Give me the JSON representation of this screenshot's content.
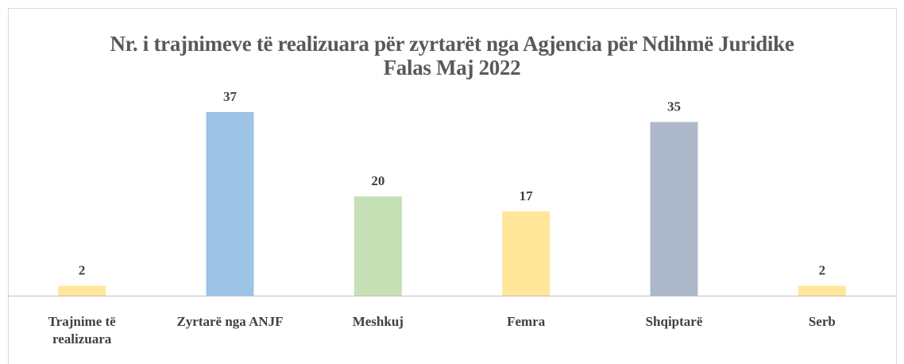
{
  "chart_data": {
    "type": "bar",
    "title": "Nr. i trajnimeve të realizuara për zyrtarët nga Agjencia për Ndihmë Juridike Falas Maj 2022",
    "categories": [
      "Trajnime të realizuara",
      "Zyrtarë nga ANJF",
      "Meshkuj",
      "Femra",
      "Shqiptarë",
      "Serb"
    ],
    "values": [
      2,
      37,
      20,
      17,
      35,
      2
    ],
    "colors": [
      "#ffe699",
      "#9dc3e6",
      "#c5e0b4",
      "#ffe699",
      "#adb9ca",
      "#ffe699"
    ],
    "grid": false
  }
}
